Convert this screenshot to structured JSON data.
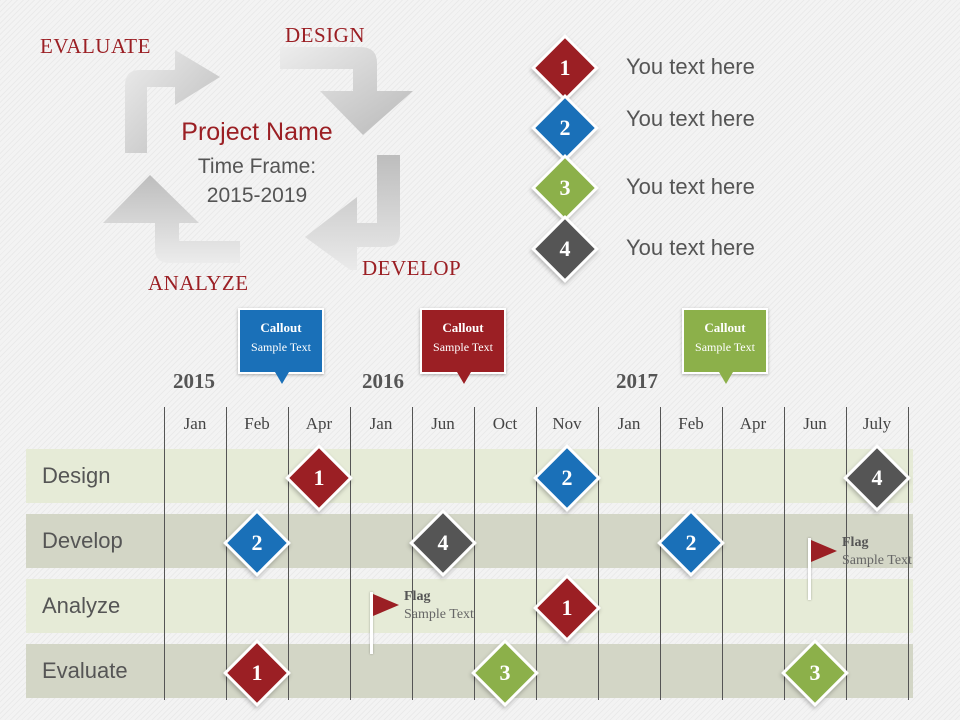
{
  "colors": {
    "red": "#9b1f24",
    "blue": "#1a70b8",
    "green": "#8cb04a",
    "gray": "#555555",
    "row_light": "#e6ebd7",
    "row_dark": "#d3d6c6"
  },
  "cycle": {
    "evaluate": "EVALUATE",
    "design": "DESIGN",
    "develop": "DEVELOP",
    "analyze": "ANALYZE",
    "project_name": "Project Name",
    "timeframe_label": "Time Frame:",
    "timeframe_range": "2015-2019"
  },
  "legend": [
    {
      "num": "1",
      "color": "red",
      "text": "You text here"
    },
    {
      "num": "2",
      "color": "blue",
      "text": "You text here"
    },
    {
      "num": "3",
      "color": "green",
      "text": "You text here"
    },
    {
      "num": "4",
      "color": "gray",
      "text": "You text here"
    }
  ],
  "callouts": [
    {
      "title": "Callout",
      "sub": "Sample Text",
      "color": "blue"
    },
    {
      "title": "Callout",
      "sub": "Sample Text",
      "color": "red"
    },
    {
      "title": "Callout",
      "sub": "Sample Text",
      "color": "green"
    }
  ],
  "years": [
    "2015",
    "2016",
    "2017"
  ],
  "months": [
    "Jan",
    "Feb",
    "Apr",
    "Jan",
    "Jun",
    "Oct",
    "Nov",
    "Jan",
    "Feb",
    "Apr",
    "Jun",
    "July"
  ],
  "rows": [
    {
      "label": "Design",
      "milestones": [
        {
          "col": 2,
          "num": "1",
          "color": "red"
        },
        {
          "col": 6,
          "num": "2",
          "color": "blue"
        },
        {
          "col": 11,
          "num": "4",
          "color": "gray"
        }
      ]
    },
    {
      "label": "Develop",
      "milestones": [
        {
          "col": 1,
          "num": "2",
          "color": "blue"
        },
        {
          "col": 4,
          "num": "4",
          "color": "gray"
        },
        {
          "col": 8,
          "num": "2",
          "color": "blue"
        }
      ]
    },
    {
      "label": "Analyze",
      "milestones": [
        {
          "col": 6,
          "num": "1",
          "color": "red"
        }
      ]
    },
    {
      "label": "Evaluate",
      "milestones": [
        {
          "col": 1,
          "num": "1",
          "color": "red"
        },
        {
          "col": 5,
          "num": "3",
          "color": "green"
        },
        {
          "col": 10,
          "num": "3",
          "color": "green"
        }
      ]
    }
  ],
  "flags": [
    {
      "title": "Flag",
      "sub": "Sample Text"
    },
    {
      "title": "Flag",
      "sub": "Sample Text"
    }
  ]
}
